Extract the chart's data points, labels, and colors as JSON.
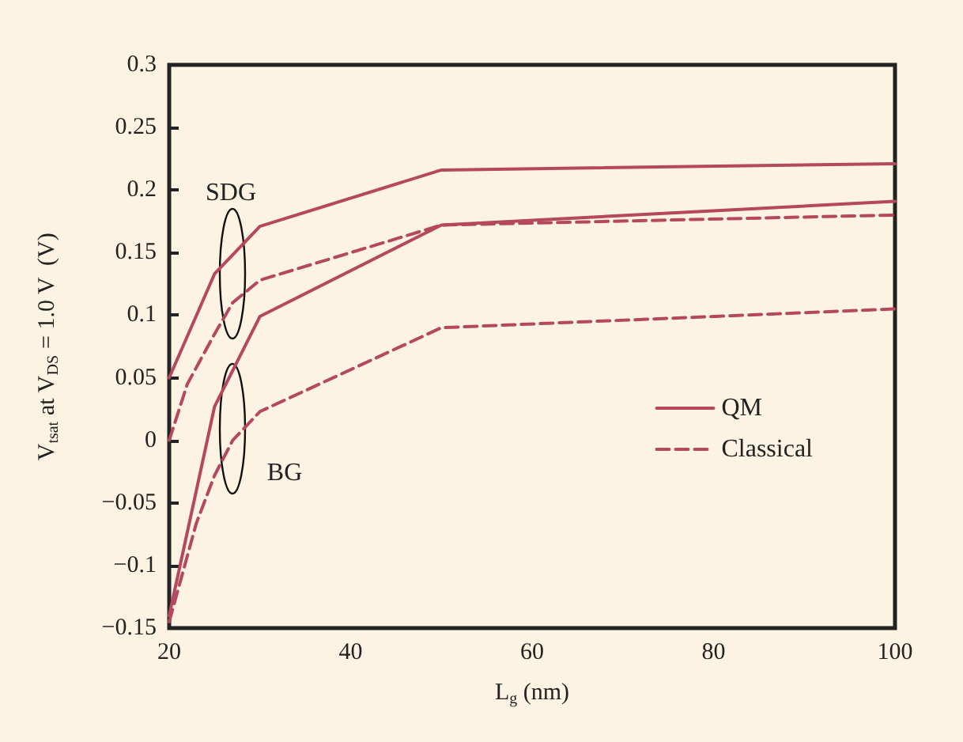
{
  "chart_data": {
    "type": "line",
    "xlabel": "L$_{g}$ (nm)",
    "ylabel": "V$_{tsat}$ at V$_{DS}$ = 1.0 V  (V)",
    "xlim": [
      20,
      100
    ],
    "xticks": [
      20,
      40,
      60,
      80,
      100
    ],
    "ylim": [
      -0.15,
      0.3
    ],
    "yticks": [
      -0.15,
      -0.1,
      -0.05,
      0,
      0.05,
      0.1,
      0.15,
      0.2,
      0.25,
      0.3
    ],
    "series": [
      {
        "name": "QM",
        "color": "#b5485d",
        "line_style": "solid",
        "x": [
          20,
          25,
          30,
          50,
          100
        ],
        "values": [
          0.05,
          0.133,
          0.171,
          0.216,
          0.221
        ]
      },
      {
        "name": "Classical",
        "color": "#b5485d",
        "line_style": "dashed",
        "x": [
          20,
          22,
          25,
          27,
          30,
          50,
          100
        ],
        "values": [
          0.0,
          0.045,
          0.085,
          0.11,
          0.128,
          0.172,
          0.18
        ]
      },
      {
        "color": "#b5485d",
        "line_style": "solid",
        "x": [
          20,
          25,
          30,
          50,
          100
        ],
        "values": [
          -0.14,
          0.027,
          0.099,
          0.172,
          0.191
        ]
      },
      {
        "color": "#b5485d",
        "line_style": "dashed",
        "x": [
          20,
          23,
          25,
          27,
          30,
          50,
          100
        ],
        "values": [
          -0.145,
          -0.066,
          -0.028,
          0.0,
          0.023,
          0.09,
          0.105
        ]
      }
    ],
    "annotations": [
      "SDG",
      "BG"
    ],
    "legend": "right",
    "grid": false,
    "marker": "none"
  }
}
